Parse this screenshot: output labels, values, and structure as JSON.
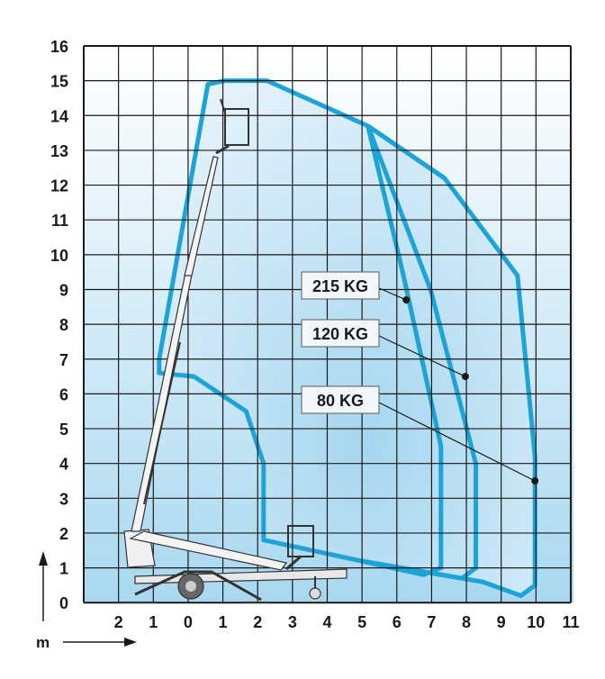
{
  "chart_data": {
    "type": "diagram",
    "y_ticks": [
      "0",
      "1",
      "2",
      "3",
      "4",
      "5",
      "6",
      "7",
      "8",
      "9",
      "10",
      "11",
      "12",
      "13",
      "14",
      "15",
      "16"
    ],
    "x_ticks": [
      "2",
      "1",
      "0",
      "1",
      "2",
      "3",
      "4",
      "5",
      "6",
      "7",
      "8",
      "9",
      "10",
      "11"
    ],
    "unit_label": "m",
    "load_labels": [
      {
        "text": "215 KG",
        "reach_x": 6.3,
        "reach_y": 8.7
      },
      {
        "text": "120 KG",
        "reach_x": 8.0,
        "reach_y": 6.5
      },
      {
        "text": "80 KG",
        "reach_x": 10.0,
        "reach_y": 3.5
      }
    ],
    "envelope_outer": [
      [
        -0.8,
        7
      ],
      [
        0.6,
        14.9
      ],
      [
        1.1,
        15
      ],
      [
        2.3,
        15
      ],
      [
        5.2,
        13.7
      ],
      [
        7.4,
        12.2
      ],
      [
        9.5,
        9.4
      ],
      [
        10.0,
        4.2
      ],
      [
        10.0,
        0.5
      ],
      [
        9.6,
        0.2
      ],
      [
        8.5,
        0.6
      ],
      [
        5.0,
        1.2
      ],
      [
        2.2,
        1.8
      ],
      [
        2.2,
        4
      ],
      [
        1.7,
        5.5
      ],
      [
        0.2,
        6.5
      ],
      [
        -0.8,
        6.6
      ],
      [
        -0.8,
        7
      ]
    ],
    "envelope_mid": [
      [
        5.2,
        13.7
      ],
      [
        7.0,
        9.0
      ],
      [
        8.3,
        4.0
      ],
      [
        8.3,
        1.0
      ],
      [
        7.9,
        0.7
      ],
      [
        5.0,
        1.2
      ]
    ],
    "envelope_inner": [
      [
        7.4,
        12.2
      ],
      [
        5.2,
        13.7
      ],
      [
        6.2,
        9.5
      ],
      [
        7.3,
        4.5
      ],
      [
        7.3,
        1.0
      ],
      [
        6.8,
        0.8
      ],
      [
        5.0,
        1.2
      ]
    ],
    "colors": {
      "grid": "#1a1a1a",
      "envelope_stroke": "#1ca3d8",
      "fill_light": "#e8f4fb",
      "fill_dark": "#9dd3ee",
      "label_bg": "#f2f6f9",
      "text": "#1a1a1a"
    }
  }
}
